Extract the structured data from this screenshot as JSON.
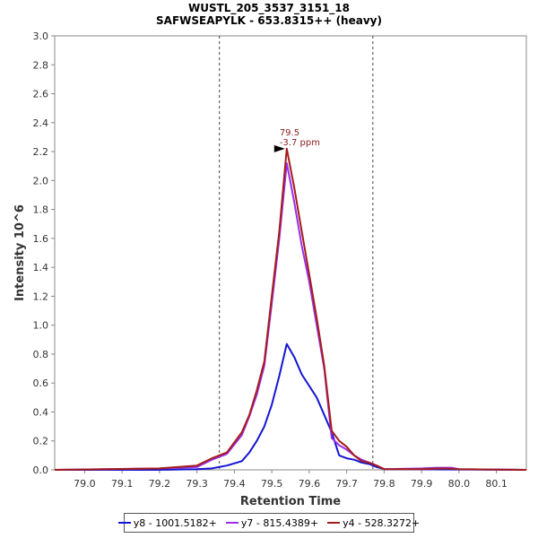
{
  "chart_data": {
    "type": "line",
    "title": "WUSTL_205_3537_3151_18",
    "subtitle": "SAFWSEAPYLK - 653.8315++ (heavy)",
    "xlabel": "Retention Time",
    "ylabel": "Intensity 10^6",
    "xlim": [
      78.92,
      80.18
    ],
    "ylim": [
      0,
      3.0
    ],
    "x_ticks": [
      "79.0",
      "79.1",
      "79.2",
      "79.3",
      "79.4",
      "79.5",
      "79.6",
      "79.7",
      "79.8",
      "79.9",
      "80.0",
      "80.1"
    ],
    "y_ticks": [
      "0.0",
      "0.2",
      "0.4",
      "0.6",
      "0.8",
      "1.0",
      "1.2",
      "1.4",
      "1.6",
      "1.8",
      "2.0",
      "2.2",
      "2.4",
      "2.6",
      "2.8",
      "3.0"
    ],
    "integration_bounds": [
      79.36,
      79.77
    ],
    "peak_annotation": {
      "x": 79.54,
      "y": 2.22,
      "retention_label": "79.5",
      "ppm_label": "-3.7 ppm"
    },
    "legend_position": "bottom",
    "series": [
      {
        "name": "y8 - 1001.5182+",
        "color": "#1515d4",
        "x": [
          78.92,
          79.2,
          79.3,
          79.34,
          79.38,
          79.42,
          79.44,
          79.46,
          79.48,
          79.5,
          79.52,
          79.54,
          79.56,
          79.58,
          79.6,
          79.62,
          79.64,
          79.66,
          79.68,
          79.7,
          79.72,
          79.74,
          79.76,
          79.78,
          79.8,
          80.18
        ],
        "y": [
          0,
          0,
          0.005,
          0.01,
          0.03,
          0.06,
          0.12,
          0.2,
          0.3,
          0.45,
          0.65,
          0.87,
          0.78,
          0.66,
          0.58,
          0.5,
          0.38,
          0.26,
          0.1,
          0.08,
          0.07,
          0.05,
          0.04,
          0.02,
          0.005,
          0
        ]
      },
      {
        "name": "y7 - 815.4389+",
        "color": "#9a2fe8",
        "x": [
          78.92,
          79.2,
          79.3,
          79.34,
          79.38,
          79.42,
          79.44,
          79.46,
          79.48,
          79.5,
          79.52,
          79.54,
          79.56,
          79.58,
          79.6,
          79.62,
          79.64,
          79.66,
          79.68,
          79.7,
          79.72,
          79.74,
          79.76,
          79.78,
          79.8,
          79.9,
          79.94,
          79.98,
          80.0,
          80.18
        ],
        "y": [
          0,
          0.01,
          0.02,
          0.07,
          0.11,
          0.24,
          0.37,
          0.52,
          0.72,
          1.15,
          1.6,
          2.12,
          1.85,
          1.55,
          1.3,
          1.0,
          0.7,
          0.22,
          0.17,
          0.14,
          0.1,
          0.07,
          0.05,
          0.03,
          0.005,
          0.01,
          0.015,
          0.015,
          0.005,
          0
        ]
      },
      {
        "name": "y4 - 528.3272+",
        "color": "#a51c1c",
        "x": [
          78.92,
          79.2,
          79.3,
          79.34,
          79.38,
          79.42,
          79.44,
          79.46,
          79.48,
          79.5,
          79.52,
          79.54,
          79.56,
          79.58,
          79.6,
          79.62,
          79.64,
          79.66,
          79.68,
          79.7,
          79.72,
          79.74,
          79.76,
          79.78,
          79.8,
          79.9,
          79.96,
          80.0,
          80.18
        ],
        "y": [
          0,
          0.01,
          0.03,
          0.08,
          0.12,
          0.26,
          0.38,
          0.55,
          0.75,
          1.2,
          1.65,
          2.22,
          1.95,
          1.65,
          1.35,
          1.05,
          0.72,
          0.27,
          0.2,
          0.16,
          0.1,
          0.06,
          0.05,
          0.03,
          0.005,
          0.005,
          0.01,
          0.005,
          0
        ]
      }
    ]
  }
}
